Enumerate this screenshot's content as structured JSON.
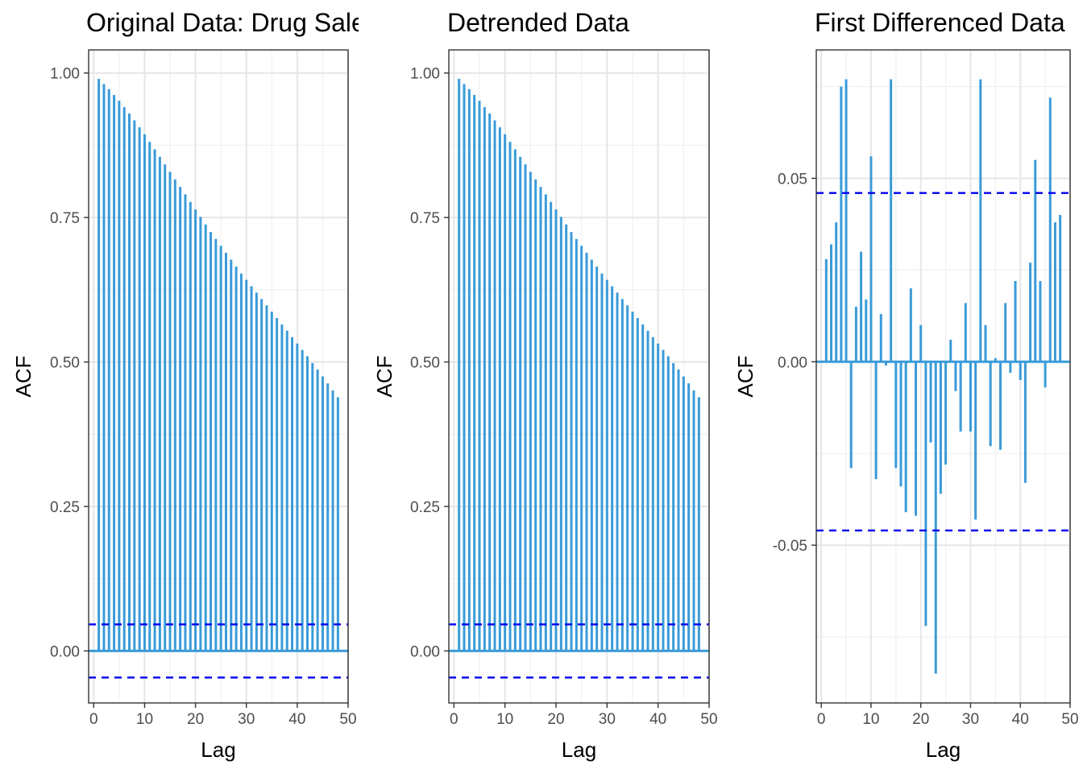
{
  "chart_data": [
    {
      "type": "bar",
      "title": "Original Data: Drug Sales",
      "xlabel": "Lag",
      "ylabel": "ACF",
      "xlim": [
        -1,
        50
      ],
      "ylim": [
        -0.09,
        1.04
      ],
      "xticks": [
        0,
        10,
        20,
        30,
        40,
        50
      ],
      "xtick_labels": [
        "0",
        "10",
        "20",
        "30",
        "40",
        "50"
      ],
      "yticks": [
        0,
        0.25,
        0.5,
        0.75,
        1.0
      ],
      "ytick_labels": [
        "0.00",
        "0.25",
        "0.50",
        "0.75",
        "1.00"
      ],
      "ci": [
        0.046,
        -0.046
      ],
      "lags": [
        1,
        2,
        3,
        4,
        5,
        6,
        7,
        8,
        9,
        10,
        11,
        12,
        13,
        14,
        15,
        16,
        17,
        18,
        19,
        20,
        21,
        22,
        23,
        24,
        25,
        26,
        27,
        28,
        29,
        30,
        31,
        32,
        33,
        34,
        35,
        36,
        37,
        38,
        39,
        40,
        41,
        42,
        43,
        44,
        45,
        46,
        47,
        48
      ],
      "values": [
        0.99,
        0.981,
        0.972,
        0.962,
        0.952,
        0.941,
        0.93,
        0.918,
        0.906,
        0.894,
        0.881,
        0.868,
        0.855,
        0.842,
        0.829,
        0.816,
        0.803,
        0.79,
        0.777,
        0.764,
        0.751,
        0.738,
        0.725,
        0.713,
        0.701,
        0.689,
        0.677,
        0.665,
        0.653,
        0.642,
        0.631,
        0.62,
        0.609,
        0.598,
        0.587,
        0.576,
        0.565,
        0.554,
        0.543,
        0.532,
        0.521,
        0.51,
        0.498,
        0.487,
        0.475,
        0.463,
        0.451,
        0.439
      ]
    },
    {
      "type": "bar",
      "title": "Detrended Data",
      "xlabel": "Lag",
      "ylabel": "ACF",
      "xlim": [
        -1,
        50
      ],
      "ylim": [
        -0.09,
        1.04
      ],
      "xticks": [
        0,
        10,
        20,
        30,
        40,
        50
      ],
      "xtick_labels": [
        "0",
        "10",
        "20",
        "30",
        "40",
        "50"
      ],
      "yticks": [
        0,
        0.25,
        0.5,
        0.75,
        1.0
      ],
      "ytick_labels": [
        "0.00",
        "0.25",
        "0.50",
        "0.75",
        "1.00"
      ],
      "ci": [
        0.046,
        -0.046
      ],
      "lags": [
        1,
        2,
        3,
        4,
        5,
        6,
        7,
        8,
        9,
        10,
        11,
        12,
        13,
        14,
        15,
        16,
        17,
        18,
        19,
        20,
        21,
        22,
        23,
        24,
        25,
        26,
        27,
        28,
        29,
        30,
        31,
        32,
        33,
        34,
        35,
        36,
        37,
        38,
        39,
        40,
        41,
        42,
        43,
        44,
        45,
        46,
        47,
        48
      ],
      "values": [
        0.99,
        0.981,
        0.972,
        0.962,
        0.952,
        0.941,
        0.93,
        0.918,
        0.906,
        0.894,
        0.881,
        0.868,
        0.855,
        0.842,
        0.829,
        0.816,
        0.803,
        0.79,
        0.777,
        0.764,
        0.751,
        0.738,
        0.725,
        0.713,
        0.701,
        0.689,
        0.677,
        0.665,
        0.653,
        0.642,
        0.631,
        0.62,
        0.609,
        0.598,
        0.587,
        0.576,
        0.565,
        0.554,
        0.543,
        0.532,
        0.521,
        0.51,
        0.498,
        0.487,
        0.475,
        0.463,
        0.451,
        0.439
      ]
    },
    {
      "type": "bar",
      "title": "First Differenced Data",
      "xlabel": "Lag",
      "ylabel": "ACF",
      "xlim": [
        -1,
        50
      ],
      "ylim": [
        -0.093,
        0.085
      ],
      "xticks": [
        0,
        10,
        20,
        30,
        40,
        50
      ],
      "xtick_labels": [
        "0",
        "10",
        "20",
        "30",
        "40",
        "50"
      ],
      "yticks": [
        -0.05,
        0,
        0.05
      ],
      "ytick_labels": [
        "-0.05",
        "0.00",
        "0.05"
      ],
      "ci": [
        0.046,
        -0.046
      ],
      "lags": [
        1,
        2,
        3,
        4,
        5,
        6,
        7,
        8,
        9,
        10,
        11,
        12,
        13,
        14,
        15,
        16,
        17,
        18,
        19,
        20,
        21,
        22,
        23,
        24,
        25,
        26,
        27,
        28,
        29,
        30,
        31,
        32,
        33,
        34,
        35,
        36,
        37,
        38,
        39,
        40,
        41,
        42,
        43,
        44,
        45,
        46,
        47,
        48
      ],
      "values": [
        0.028,
        0.032,
        0.038,
        0.075,
        0.077,
        -0.029,
        0.015,
        0.03,
        0.017,
        0.056,
        -0.032,
        0.013,
        -0.001,
        0.077,
        -0.029,
        -0.034,
        -0.041,
        0.02,
        -0.042,
        0.01,
        -0.072,
        -0.022,
        -0.085,
        -0.036,
        -0.028,
        0.006,
        -0.008,
        -0.019,
        0.016,
        -0.019,
        -0.043,
        0.077,
        0.01,
        -0.023,
        0.001,
        -0.024,
        0.016,
        -0.003,
        0.022,
        -0.005,
        -0.033,
        0.027,
        0.055,
        0.022,
        -0.007,
        0.072,
        0.038,
        0.04
      ]
    }
  ]
}
